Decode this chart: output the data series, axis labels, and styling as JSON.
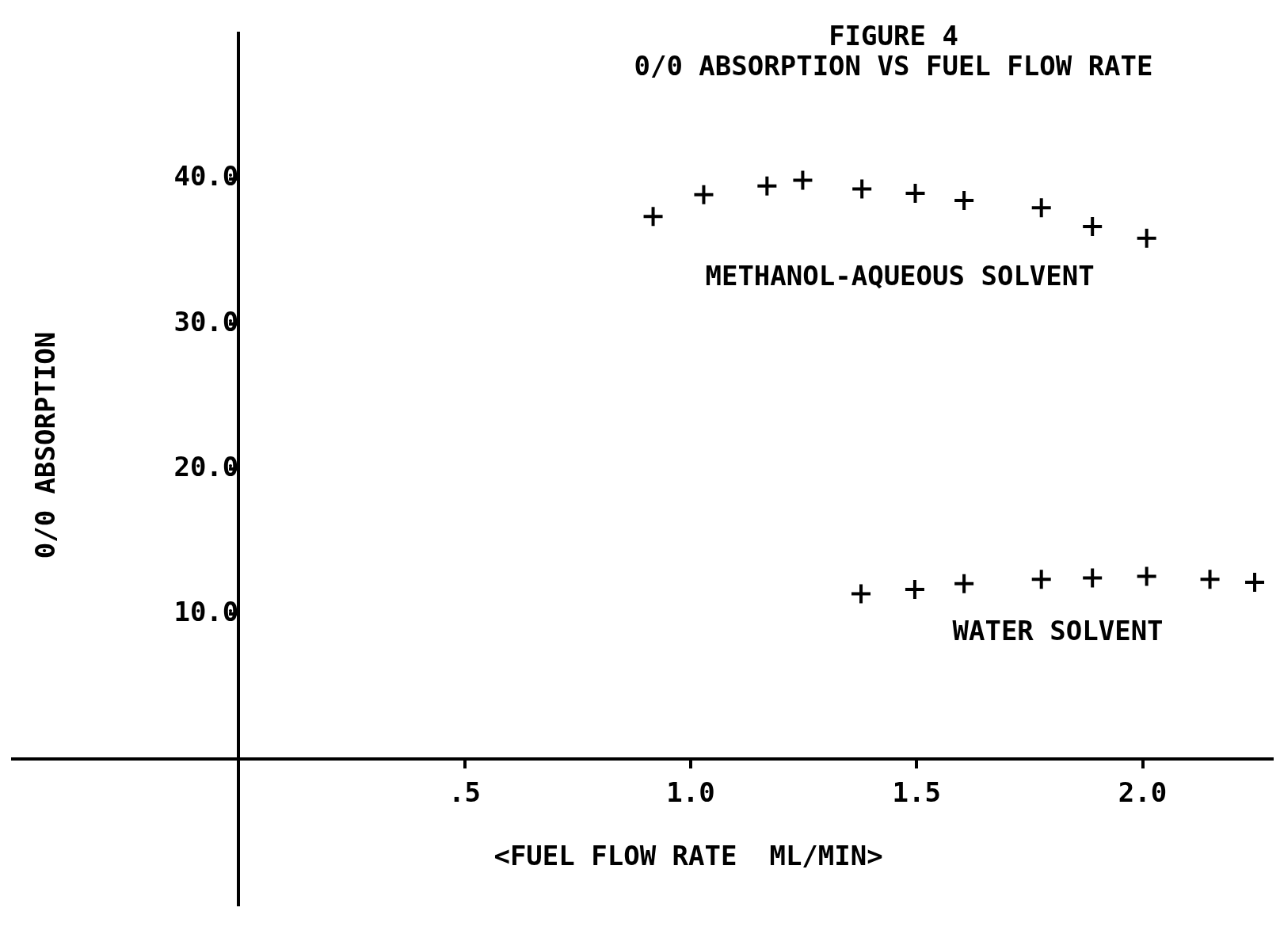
{
  "chart_data": {
    "type": "scatter",
    "title": "FIGURE 4",
    "subtitle": "0/0 ABSORPTION VS FUEL FLOW RATE",
    "xlabel": "<FUEL FLOW RATE  ML/MIN>",
    "ylabel": "0/0 ABSORPTION",
    "xlim": [
      -0.5,
      2.29
    ],
    "ylim": [
      -10,
      50
    ],
    "xticks": [
      {
        "value": 0.5,
        "label": ".5"
      },
      {
        "value": 1,
        "label": "1.0"
      },
      {
        "value": 1.5,
        "label": "1.5"
      },
      {
        "value": 2,
        "label": "2.0"
      }
    ],
    "yticks": [
      {
        "value": 10,
        "label": "10.0"
      },
      {
        "value": 20,
        "label": "20.0"
      },
      {
        "value": 30,
        "label": "30.0"
      },
      {
        "value": 40,
        "label": "40.0"
      }
    ],
    "grid": false,
    "legend": "center",
    "marker": "cross",
    "series": [
      {
        "name": "METHANOL-AQUEOUS SOLVENT",
        "color": "#000000",
        "x": [
          0.917,
          1.029,
          1.169,
          1.248,
          1.379,
          1.497,
          1.605,
          1.776,
          1.889,
          2.009
        ],
        "values": [
          37.4,
          38.9,
          39.5,
          39.9,
          39.3,
          39.0,
          38.5,
          38.0,
          36.7,
          35.9
        ]
      },
      {
        "name": "WATER SOLVENT",
        "color": "#000000",
        "x": [
          1.377,
          1.496,
          1.605,
          1.776,
          1.889,
          2.009,
          2.149,
          2.248
        ],
        "values": [
          11.4,
          11.7,
          12.1,
          12.4,
          12.5,
          12.6,
          12.4,
          12.2
        ]
      }
    ]
  }
}
